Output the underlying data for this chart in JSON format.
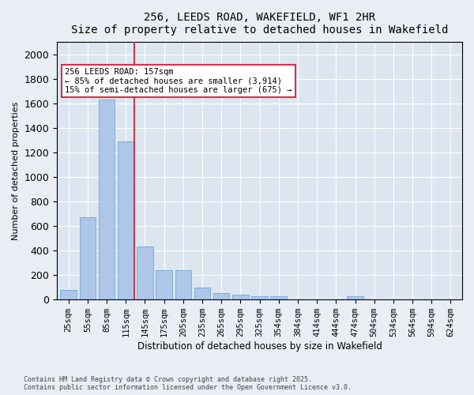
{
  "title": "256, LEEDS ROAD, WAKEFIELD, WF1 2HR",
  "subtitle": "Size of property relative to detached houses in Wakefield",
  "xlabel": "Distribution of detached houses by size in Wakefield",
  "ylabel": "Number of detached properties",
  "categories": [
    "25sqm",
    "55sqm",
    "85sqm",
    "115sqm",
    "145sqm",
    "175sqm",
    "205sqm",
    "235sqm",
    "265sqm",
    "295sqm",
    "325sqm",
    "354sqm",
    "384sqm",
    "414sqm",
    "444sqm",
    "474sqm",
    "504sqm",
    "534sqm",
    "564sqm",
    "594sqm",
    "624sqm"
  ],
  "values": [
    80,
    670,
    1630,
    1290,
    430,
    240,
    240,
    95,
    55,
    40,
    30,
    25,
    0,
    0,
    0,
    30,
    0,
    0,
    0,
    0,
    0
  ],
  "bar_color": "#aec6e8",
  "bar_edge_color": "#5a9fd4",
  "highlight_color": "#c8374a",
  "redline_x": 3.425,
  "annotation_text": "256 LEEDS ROAD: 157sqm\n← 85% of detached houses are smaller (3,914)\n15% of semi-detached houses are larger (675) →",
  "annotation_box_color": "#ffffff",
  "annotation_box_edge": "#c8374a",
  "ylim": [
    0,
    2100
  ],
  "yticks": [
    0,
    200,
    400,
    600,
    800,
    1000,
    1200,
    1400,
    1600,
    1800,
    2000
  ],
  "background_color": "#e8eef4",
  "plot_background": "#dce6f0",
  "grid_color": "#ffffff",
  "footer_line1": "Contains HM Land Registry data © Crown copyright and database right 2025.",
  "footer_line2": "Contains public sector information licensed under the Open Government Licence v3.0."
}
